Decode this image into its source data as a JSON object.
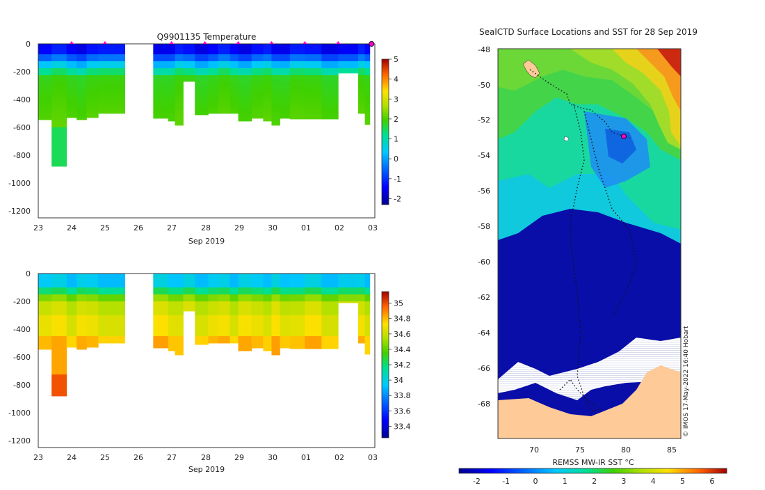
{
  "chart_data": [
    {
      "type": "heatmap",
      "title": "Q9901135  Temperature",
      "xlabel": "Sep 2019",
      "x_ticks": [
        "23",
        "24",
        "25",
        "26",
        "27",
        "28",
        "29",
        "30",
        "01",
        "02",
        "03"
      ],
      "y_ticks": [
        "0",
        "-200",
        "-400",
        "-600",
        "-800",
        "-1000",
        "-1200"
      ],
      "ylim": [
        -1250,
        0
      ],
      "colorbar": {
        "min": -2.3,
        "max": 5,
        "ticks": [
          "5",
          "4",
          "3",
          "2",
          "1",
          "0",
          "-1",
          "-2"
        ]
      }
    },
    {
      "type": "heatmap",
      "title": "",
      "xlabel": "Sep 2019",
      "x_ticks": [
        "23",
        "24",
        "25",
        "26",
        "27",
        "28",
        "29",
        "30",
        "01",
        "02",
        "03"
      ],
      "y_ticks": [
        "0",
        "-200",
        "-400",
        "-600",
        "-800",
        "-1000",
        "-1200"
      ],
      "ylim": [
        -1250,
        0
      ],
      "colorbar": {
        "min": 33.25,
        "max": 35.15,
        "ticks": [
          "35",
          "34.8",
          "34.6",
          "34.4",
          "34.2",
          "34",
          "33.8",
          "33.6",
          "33.4"
        ]
      }
    },
    {
      "type": "heatmap",
      "title": "SealCTD Surface Locations and SST for 28 Sep 2019",
      "lat_ticks": [
        "-48",
        "-50",
        "-52",
        "-54",
        "-56",
        "-58",
        "-60",
        "-62",
        "-64",
        "-66",
        "-68"
      ],
      "lon_ticks": [
        "70",
        "75",
        "80",
        "85"
      ],
      "colorbar_label": "REMSS MW-IR SST °C",
      "colorbar": {
        "min": -2.6,
        "max": 6.5,
        "ticks": [
          "-2",
          "-1",
          "0",
          "1",
          "2",
          "3",
          "4",
          "5",
          "6"
        ]
      },
      "credit": "© IMOS 17-May-2022 16:40 Hobart"
    }
  ]
}
